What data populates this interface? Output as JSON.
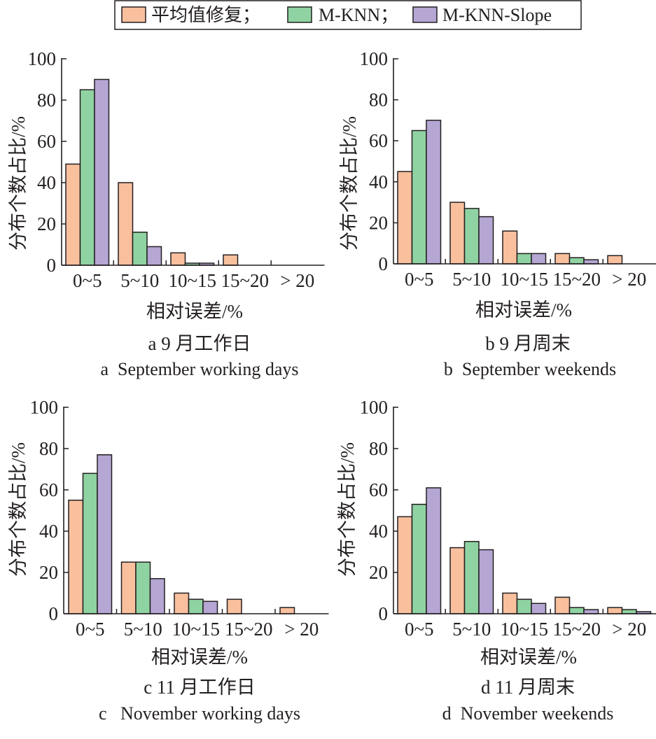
{
  "legend": {
    "items": [
      {
        "label": "平均值修复；",
        "color": "#f9c09e"
      },
      {
        "label": "M-KNN；",
        "color": "#8fd3a2"
      },
      {
        "label": "M-KNN-Slope",
        "color": "#b5a6d4"
      }
    ]
  },
  "colors": {
    "stroke": "#231f20",
    "series": [
      "#f9c09e",
      "#8fd3a2",
      "#b5a6d4"
    ]
  },
  "chart_data": [
    {
      "type": "bar",
      "id": "a",
      "caption_cn": "a 9 月工作日",
      "caption_en": "a  September working days",
      "xlabel": "相对误差/%",
      "ylabel": "分布个数占比/%",
      "ylim": [
        0,
        100
      ],
      "yticks": [
        "0",
        "20",
        "40",
        "60",
        "80",
        "100"
      ],
      "categories": [
        "0~5",
        "5~10",
        "10~15",
        "15~20",
        "> 20"
      ],
      "series": [
        {
          "name": "平均值修复",
          "values": [
            49,
            40,
            6,
            5,
            0
          ]
        },
        {
          "name": "M-KNN",
          "values": [
            85,
            16,
            1,
            0,
            0
          ]
        },
        {
          "name": "M-KNN-Slope",
          "values": [
            90,
            9,
            1,
            0,
            0
          ]
        }
      ]
    },
    {
      "type": "bar",
      "id": "b",
      "caption_cn": "b 9 月周末",
      "caption_en": "b  September weekends",
      "xlabel": "相对误差/%",
      "ylabel": "分布个数占比/%",
      "ylim": [
        0,
        100
      ],
      "yticks": [
        "0",
        "20",
        "40",
        "60",
        "80",
        "100"
      ],
      "categories": [
        "0~5",
        "5~10",
        "10~15",
        "15~20",
        "> 20"
      ],
      "series": [
        {
          "name": "平均值修复",
          "values": [
            45,
            30,
            16,
            5,
            4
          ]
        },
        {
          "name": "M-KNN",
          "values": [
            65,
            27,
            5,
            3,
            0
          ]
        },
        {
          "name": "M-KNN-Slope",
          "values": [
            70,
            23,
            5,
            2,
            0
          ]
        }
      ]
    },
    {
      "type": "bar",
      "id": "c",
      "caption_cn": "c 11 月工作日",
      "caption_en": "c   November working days",
      "xlabel": "相对误差/%",
      "ylabel": "分布个数占比/%",
      "ylim": [
        0,
        100
      ],
      "yticks": [
        "0",
        "20",
        "40",
        "60",
        "80",
        "100"
      ],
      "categories": [
        "0~5",
        "5~10",
        "10~15",
        "15~20",
        "> 20"
      ],
      "series": [
        {
          "name": "平均值修复",
          "values": [
            55,
            25,
            10,
            7,
            3
          ]
        },
        {
          "name": "M-KNN",
          "values": [
            68,
            25,
            7,
            0,
            0
          ]
        },
        {
          "name": "M-KNN-Slope",
          "values": [
            77,
            17,
            6,
            0,
            0
          ]
        }
      ]
    },
    {
      "type": "bar",
      "id": "d",
      "caption_cn": "d 11 月周末",
      "caption_en": "d  November weekends",
      "xlabel": "相对误差/%",
      "ylabel": "分布个数占比/%",
      "ylim": [
        0,
        100
      ],
      "yticks": [
        "0",
        "20",
        "40",
        "60",
        "80",
        "100"
      ],
      "categories": [
        "0~5",
        "5~10",
        "10~15",
        "15~20",
        "> 20"
      ],
      "series": [
        {
          "name": "平均值修复",
          "values": [
            47,
            32,
            10,
            8,
            3
          ]
        },
        {
          "name": "M-KNN",
          "values": [
            53,
            35,
            7,
            3,
            2
          ]
        },
        {
          "name": "M-KNN-Slope",
          "values": [
            61,
            31,
            5,
            2,
            1
          ]
        }
      ]
    }
  ]
}
